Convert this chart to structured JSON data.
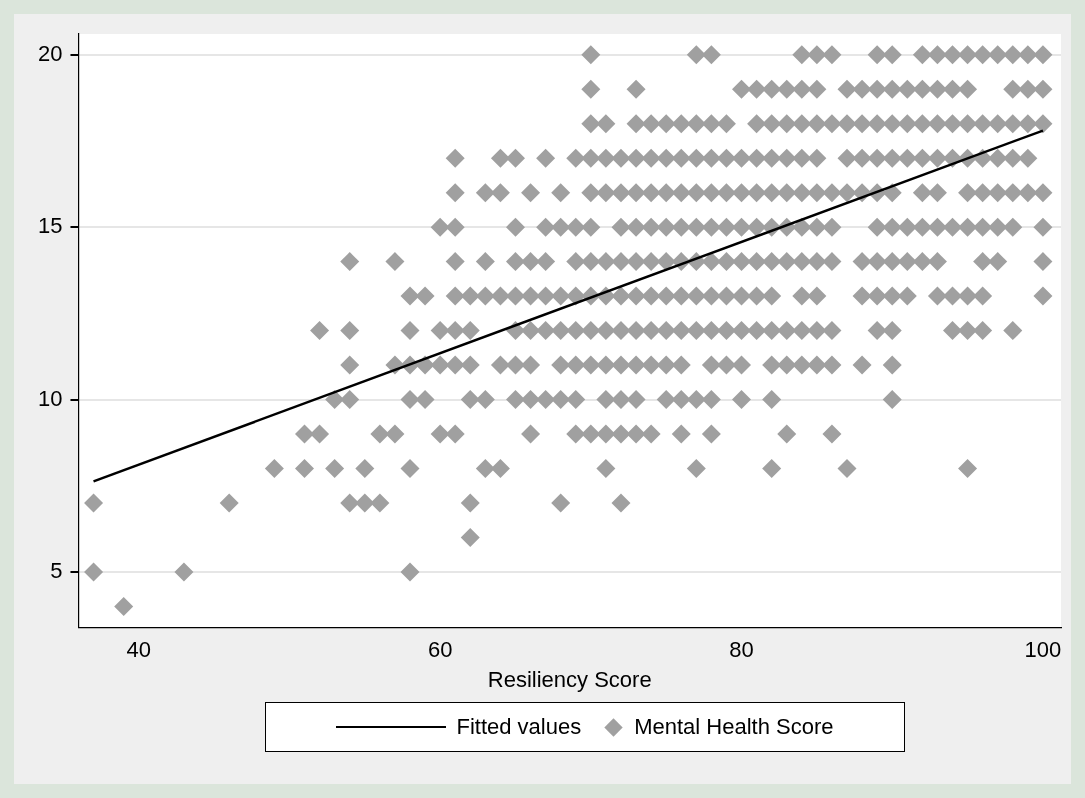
{
  "chart_data": {
    "type": "scatter",
    "xlabel": "Resiliency Score",
    "xlim": [
      36,
      101.2
    ],
    "ylim": [
      3.4,
      20.6
    ],
    "xticks": [
      40,
      60,
      80,
      100
    ],
    "yticks": [
      5,
      10,
      15,
      20
    ],
    "grid": "y",
    "legend": "bottom",
    "series": [
      {
        "name": "Fitted values",
        "type": "line",
        "color": "#000000",
        "marker": "none",
        "x": [
          37,
          100
        ],
        "values": [
          7.63,
          17.8
        ]
      },
      {
        "name": "Mental Health Score",
        "type": "scatter",
        "color": "#a0a0a0",
        "marker": "diamond",
        "x": [
          70,
          77,
          78,
          84,
          85,
          86,
          89,
          90,
          92,
          93,
          94,
          95,
          96,
          97,
          98,
          99,
          100,
          70,
          73,
          80,
          81,
          82,
          83,
          84,
          85,
          87,
          88,
          89,
          90,
          91,
          92,
          93,
          94,
          95,
          98,
          99,
          100,
          70,
          71,
          73,
          74,
          75,
          76,
          77,
          78,
          79,
          81,
          82,
          83,
          84,
          85,
          86,
          87,
          88,
          89,
          90,
          91,
          92,
          93,
          94,
          95,
          96,
          97,
          98,
          99,
          100,
          61,
          64,
          65,
          67,
          69,
          70,
          71,
          72,
          73,
          74,
          75,
          76,
          77,
          78,
          79,
          80,
          81,
          82,
          83,
          84,
          85,
          87,
          88,
          89,
          90,
          91,
          92,
          93,
          94,
          95,
          96,
          97,
          98,
          99,
          61,
          63,
          64,
          66,
          68,
          70,
          71,
          72,
          73,
          74,
          75,
          76,
          77,
          78,
          79,
          80,
          81,
          82,
          83,
          84,
          85,
          86,
          87,
          88,
          89,
          90,
          92,
          93,
          95,
          96,
          97,
          98,
          99,
          100,
          60,
          61,
          65,
          67,
          68,
          69,
          70,
          72,
          73,
          74,
          75,
          76,
          77,
          78,
          79,
          80,
          81,
          82,
          83,
          84,
          85,
          86,
          89,
          90,
          91,
          92,
          93,
          94,
          95,
          96,
          97,
          98,
          100,
          54,
          57,
          61,
          63,
          65,
          66,
          67,
          69,
          70,
          71,
          72,
          73,
          74,
          75,
          76,
          77,
          78,
          79,
          80,
          81,
          82,
          83,
          84,
          85,
          86,
          88,
          89,
          90,
          91,
          92,
          93,
          96,
          97,
          100,
          58,
          59,
          61,
          62,
          63,
          64,
          65,
          66,
          67,
          68,
          69,
          70,
          71,
          72,
          73,
          74,
          75,
          76,
          77,
          78,
          79,
          80,
          81,
          82,
          84,
          85,
          88,
          89,
          90,
          91,
          93,
          94,
          95,
          96,
          100,
          52,
          54,
          58,
          60,
          61,
          62,
          65,
          66,
          67,
          68,
          69,
          70,
          71,
          72,
          73,
          74,
          75,
          76,
          77,
          78,
          79,
          80,
          81,
          82,
          83,
          84,
          85,
          86,
          89,
          90,
          94,
          95,
          96,
          98,
          54,
          57,
          58,
          59,
          60,
          61,
          62,
          64,
          65,
          66,
          68,
          69,
          70,
          71,
          72,
          73,
          74,
          75,
          76,
          78,
          79,
          80,
          82,
          83,
          84,
          85,
          86,
          88,
          90,
          53,
          54,
          58,
          59,
          62,
          63,
          65,
          66,
          67,
          68,
          69,
          71,
          72,
          73,
          75,
          76,
          77,
          78,
          80,
          82,
          90,
          51,
          52,
          56,
          57,
          60,
          61,
          66,
          69,
          70,
          71,
          72,
          73,
          74,
          76,
          78,
          83,
          86,
          49,
          51,
          53,
          55,
          58,
          63,
          64,
          71,
          77,
          82,
          87,
          95,
          37,
          46,
          54,
          55,
          56,
          62,
          68,
          72,
          62,
          37,
          43,
          58,
          39
        ],
        "values": [
          20,
          20,
          20,
          20,
          20,
          20,
          20,
          20,
          20,
          20,
          20,
          20,
          20,
          20,
          20,
          20,
          20,
          19,
          19,
          19,
          19,
          19,
          19,
          19,
          19,
          19,
          19,
          19,
          19,
          19,
          19,
          19,
          19,
          19,
          19,
          19,
          19,
          18,
          18,
          18,
          18,
          18,
          18,
          18,
          18,
          18,
          18,
          18,
          18,
          18,
          18,
          18,
          18,
          18,
          18,
          18,
          18,
          18,
          18,
          18,
          18,
          18,
          18,
          18,
          18,
          18,
          17,
          17,
          17,
          17,
          17,
          17,
          17,
          17,
          17,
          17,
          17,
          17,
          17,
          17,
          17,
          17,
          17,
          17,
          17,
          17,
          17,
          17,
          17,
          17,
          17,
          17,
          17,
          17,
          17,
          17,
          17,
          17,
          17,
          17,
          16,
          16,
          16,
          16,
          16,
          16,
          16,
          16,
          16,
          16,
          16,
          16,
          16,
          16,
          16,
          16,
          16,
          16,
          16,
          16,
          16,
          16,
          16,
          16,
          16,
          16,
          16,
          16,
          16,
          16,
          16,
          16,
          16,
          16,
          15,
          15,
          15,
          15,
          15,
          15,
          15,
          15,
          15,
          15,
          15,
          15,
          15,
          15,
          15,
          15,
          15,
          15,
          15,
          15,
          15,
          15,
          15,
          15,
          15,
          15,
          15,
          15,
          15,
          15,
          15,
          15,
          15,
          14,
          14,
          14,
          14,
          14,
          14,
          14,
          14,
          14,
          14,
          14,
          14,
          14,
          14,
          14,
          14,
          14,
          14,
          14,
          14,
          14,
          14,
          14,
          14,
          14,
          14,
          14,
          14,
          14,
          14,
          14,
          14,
          14,
          14,
          13,
          13,
          13,
          13,
          13,
          13,
          13,
          13,
          13,
          13,
          13,
          13,
          13,
          13,
          13,
          13,
          13,
          13,
          13,
          13,
          13,
          13,
          13,
          13,
          13,
          13,
          13,
          13,
          13,
          13,
          13,
          13,
          13,
          13,
          13,
          12,
          12,
          12,
          12,
          12,
          12,
          12,
          12,
          12,
          12,
          12,
          12,
          12,
          12,
          12,
          12,
          12,
          12,
          12,
          12,
          12,
          12,
          12,
          12,
          12,
          12,
          12,
          12,
          12,
          12,
          12,
          12,
          12,
          12,
          11,
          11,
          11,
          11,
          11,
          11,
          11,
          11,
          11,
          11,
          11,
          11,
          11,
          11,
          11,
          11,
          11,
          11,
          11,
          11,
          11,
          11,
          11,
          11,
          11,
          11,
          11,
          11,
          11,
          10,
          10,
          10,
          10,
          10,
          10,
          10,
          10,
          10,
          10,
          10,
          10,
          10,
          10,
          10,
          10,
          10,
          10,
          10,
          10,
          10,
          9,
          9,
          9,
          9,
          9,
          9,
          9,
          9,
          9,
          9,
          9,
          9,
          9,
          9,
          9,
          9,
          9,
          8,
          8,
          8,
          8,
          8,
          8,
          8,
          8,
          8,
          8,
          8,
          8,
          7,
          7,
          7,
          7,
          7,
          7,
          7,
          7,
          6,
          5,
          5,
          5,
          4
        ]
      }
    ]
  }
}
